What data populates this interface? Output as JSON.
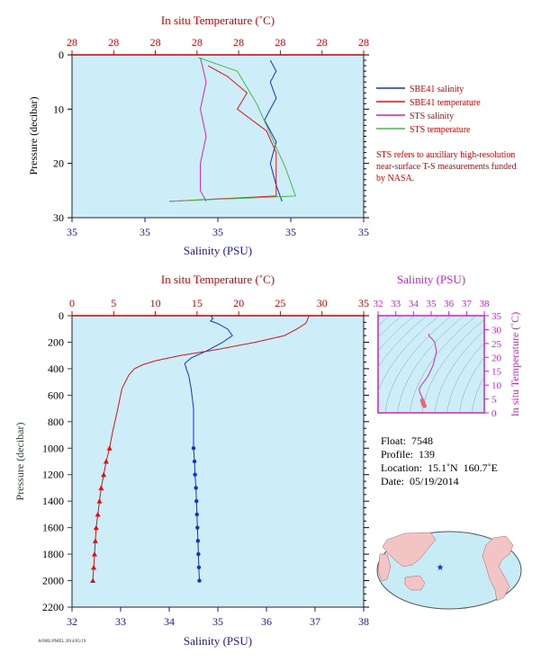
{
  "top_panel": {
    "top_axis_label": "In situ Temperature (˚C)",
    "top_tick_labels": [
      "28",
      "28",
      "28",
      "28",
      "28",
      "28",
      "28",
      "28"
    ],
    "left_axis_label": "Pressure (decibar)",
    "left_tick_labels": [
      "0",
      "10",
      "20",
      "30"
    ],
    "bottom_axis_label": "Salinity (PSU)",
    "bottom_tick_labels": [
      "35",
      "35",
      "35",
      "35",
      "35"
    ],
    "legend": [
      {
        "label": "SBE41 salinity",
        "color": "#1133cc"
      },
      {
        "label": "SBE41 temperature",
        "color": "#dd1111"
      },
      {
        "label": "STS salinity",
        "color": "#cc22cc"
      },
      {
        "label": "STS temperature",
        "color": "#44bb44"
      }
    ],
    "note": "STS refers to auxiliary high-resolution near-surface T-S measurements funded by NASA."
  },
  "main_panel": {
    "top_axis_label": "In situ Temperature (˚C)",
    "left_axis_label": "Pressure (decibar)",
    "bottom_axis_label": "Salinity (PSU)"
  },
  "ts_panel": {
    "top_axis_label": "Salinity (PSU)",
    "right_axis_label": "In situ Temperature (˚C)"
  },
  "float_info": {
    "float": "Float:  7548",
    "profile": "Profile:  139",
    "location": "Location:  15.1˚N  160.7˚E",
    "date": "Date:  05/19/2014"
  },
  "footer_text": "AOML/PMEL 2014/05/19",
  "colors": {
    "salinity": "#1133cc",
    "temperature": "#dd1111",
    "sts_salinity": "#cc22cc",
    "sts_temperature": "#44bb44",
    "plot_bg": "#cdeef8",
    "temp_axis": "#cc0000",
    "sal_axis": "#1a1a99",
    "pres_axis": "#2a4a2a",
    "ts_axis": "#cc22cc"
  },
  "chart_data": [
    {
      "type": "line",
      "title": "",
      "xlabel": "Salinity (PSU)",
      "x2label": "In situ Temperature (˚C)",
      "ylabel": "Pressure (decibar)",
      "ylim": [
        0,
        30
      ],
      "y_inverted": true,
      "series": [
        {
          "name": "SBE41 salinity",
          "axis": "salinity",
          "points": [
            [
              34.94,
              1
            ],
            [
              34.95,
              3
            ],
            [
              34.94,
              5
            ],
            [
              34.95,
              8
            ],
            [
              34.93,
              12
            ],
            [
              34.95,
              16
            ],
            [
              34.94,
              20
            ],
            [
              34.95,
              24
            ],
            [
              34.96,
              27
            ]
          ]
        },
        {
          "name": "SBE41 temperature",
          "axis": "temperature",
          "points": [
            [
              27.9,
              2
            ],
            [
              28.1,
              4
            ],
            [
              28.3,
              7
            ],
            [
              28.2,
              10
            ],
            [
              28.5,
              14
            ],
            [
              28.6,
              18
            ],
            [
              28.6,
              22
            ],
            [
              28.6,
              26
            ],
            [
              27.5,
              27
            ]
          ]
        },
        {
          "name": "STS salinity",
          "axis": "salinity",
          "points": [
            [
              34.82,
              0.5
            ],
            [
              34.83,
              5
            ],
            [
              34.82,
              10
            ],
            [
              34.83,
              15
            ],
            [
              34.82,
              20
            ],
            [
              34.82,
              25
            ],
            [
              34.83,
              27
            ]
          ]
        },
        {
          "name": "STS temperature",
          "axis": "temperature",
          "points": [
            [
              27.8,
              0.5
            ],
            [
              28.2,
              3
            ],
            [
              28.3,
              6
            ],
            [
              28.4,
              9
            ],
            [
              28.5,
              13
            ],
            [
              28.6,
              17
            ],
            [
              28.7,
              21
            ],
            [
              28.8,
              26
            ],
            [
              27.5,
              27
            ]
          ]
        }
      ]
    },
    {
      "type": "line",
      "title": "",
      "xlabel": "Salinity (PSU)",
      "x2label": "In situ Temperature (˚C)",
      "ylabel": "Pressure (decibar)",
      "xlim": [
        32,
        38
      ],
      "x2lim": [
        0,
        35
      ],
      "ylim": [
        0,
        2200
      ],
      "y_inverted": true,
      "x_ticks": [
        32,
        33,
        34,
        35,
        36,
        37,
        38
      ],
      "x2_ticks": [
        0,
        5,
        10,
        15,
        20,
        25,
        30,
        35
      ],
      "y_ticks": [
        0,
        200,
        400,
        600,
        800,
        1000,
        1200,
        1400,
        1600,
        1800,
        2000,
        2200
      ],
      "series": [
        {
          "name": "Salinity",
          "axis": "salinity",
          "points": [
            [
              34.85,
              0
            ],
            [
              34.9,
              20
            ],
            [
              34.85,
              40
            ],
            [
              35.0,
              60
            ],
            [
              35.2,
              100
            ],
            [
              35.3,
              150
            ],
            [
              35.1,
              200
            ],
            [
              34.8,
              260
            ],
            [
              34.45,
              320
            ],
            [
              34.32,
              360
            ],
            [
              34.35,
              400
            ],
            [
              34.4,
              450
            ],
            [
              34.45,
              550
            ],
            [
              34.5,
              700
            ],
            [
              34.5,
              900
            ],
            [
              34.5,
              1000
            ],
            [
              34.52,
              1100
            ],
            [
              34.53,
              1200
            ],
            [
              34.55,
              1300
            ],
            [
              34.56,
              1400
            ],
            [
              34.57,
              1500
            ],
            [
              34.58,
              1600
            ],
            [
              34.59,
              1700
            ],
            [
              34.6,
              1800
            ],
            [
              34.61,
              1900
            ],
            [
              34.62,
              2000
            ]
          ]
        },
        {
          "name": "Temperature",
          "axis": "temperature",
          "points": [
            [
              28.5,
              0
            ],
            [
              28.3,
              20
            ],
            [
              28.2,
              40
            ],
            [
              28.0,
              60
            ],
            [
              27.0,
              100
            ],
            [
              25.5,
              150
            ],
            [
              22.0,
              200
            ],
            [
              17.0,
              260
            ],
            [
              13.0,
              300
            ],
            [
              10.0,
              340
            ],
            [
              8.5,
              370
            ],
            [
              7.5,
              400
            ],
            [
              6.8,
              450
            ],
            [
              6.0,
              550
            ],
            [
              5.5,
              700
            ],
            [
              4.8,
              900
            ],
            [
              4.5,
              1000
            ],
            [
              4.1,
              1100
            ],
            [
              3.8,
              1200
            ],
            [
              3.5,
              1300
            ],
            [
              3.3,
              1400
            ],
            [
              3.1,
              1500
            ],
            [
              2.9,
              1600
            ],
            [
              2.8,
              1700
            ],
            [
              2.7,
              1800
            ],
            [
              2.6,
              1900
            ],
            [
              2.5,
              2000
            ]
          ]
        }
      ]
    },
    {
      "type": "scatter",
      "title": "",
      "xlabel": "Salinity (PSU)",
      "ylabel": "In situ Temperature (˚C)",
      "xlim": [
        32,
        38
      ],
      "ylim": [
        0,
        35
      ],
      "x_ticks": [
        32,
        33,
        34,
        35,
        36,
        37,
        38
      ],
      "y_ticks": [
        0,
        5,
        10,
        15,
        20,
        25,
        30,
        35
      ],
      "points": [
        [
          34.85,
          28.5
        ],
        [
          34.9,
          27.5
        ],
        [
          35.0,
          27.0
        ],
        [
          35.2,
          25.5
        ],
        [
          35.3,
          22.0
        ],
        [
          35.1,
          17.0
        ],
        [
          34.8,
          13.0
        ],
        [
          34.45,
          10.0
        ],
        [
          34.32,
          8.5
        ],
        [
          34.35,
          7.5
        ],
        [
          34.4,
          6.8
        ],
        [
          34.45,
          6.0
        ],
        [
          34.5,
          5.5
        ],
        [
          34.5,
          4.5
        ],
        [
          34.53,
          3.8
        ],
        [
          34.56,
          3.3
        ],
        [
          34.59,
          2.8
        ],
        [
          34.62,
          2.5
        ]
      ]
    }
  ]
}
